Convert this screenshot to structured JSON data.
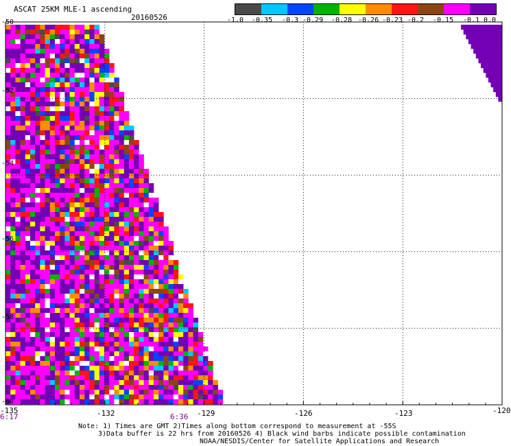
{
  "header": {
    "title": "ASCAT 25KM MLE-1 ascending",
    "date": "20160526"
  },
  "colorbar": {
    "labels": [
      "-1.0",
      "-0.35",
      "-0.3",
      "-0.29",
      "-0.28",
      "-0.26",
      "-0.23",
      "-0.2",
      "-0.15",
      "-0.1",
      "0.0"
    ],
    "colors": [
      "#4a4a4a",
      "#00c8ff",
      "#0046ff",
      "#00b400",
      "#ffff00",
      "#ff8c00",
      "#ff1414",
      "#8b4513",
      "#ff00ff",
      "#7300b4"
    ]
  },
  "axes": {
    "lon_ticks": [
      "-135",
      "-132",
      "-129",
      "-126",
      "-123",
      "-120"
    ],
    "lat_ticks": [
      "-50",
      "-52",
      "-54",
      "-56",
      "-58",
      "-60"
    ],
    "lon_range": [
      -135,
      -120
    ],
    "lat_range": [
      -60,
      -50
    ]
  },
  "times": {
    "left": "6:17",
    "middle": "6:36"
  },
  "notes": {
    "line1": "Note: 1) Times are GMT 2)Times along bottom correspond to measurement at -55S",
    "line2": "3)Data buffer is 22 hrs from 20160526 4) Black wind barbs indicate possible contamination",
    "line3": "NOAA/NESDIS/Center for Satellite Applications and Research"
  }
}
